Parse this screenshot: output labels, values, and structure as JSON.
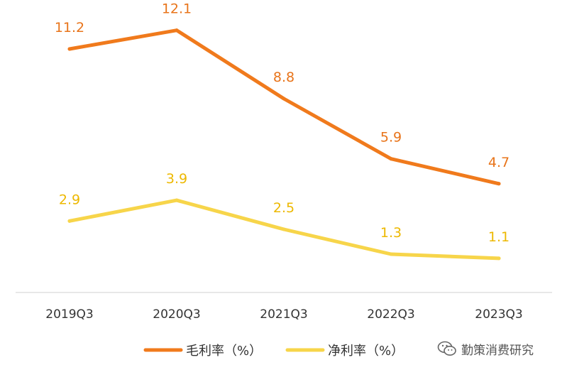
{
  "chart_data": {
    "type": "line",
    "categories": [
      "2019Q3",
      "2020Q3",
      "2021Q3",
      "2022Q3",
      "2023Q3"
    ],
    "series": [
      {
        "name": "毛利率（%）",
        "color": "#F07A1C",
        "values": [
          11.2,
          12.1,
          8.8,
          5.9,
          4.7
        ],
        "labels": [
          "11.2",
          "12.1",
          "8.8",
          "5.9",
          "4.7"
        ]
      },
      {
        "name": "净利率（%）",
        "color": "#F7D54A",
        "values": [
          2.9,
          3.9,
          2.5,
          1.3,
          1.1
        ],
        "labels": [
          "2.9",
          "3.9",
          "2.5",
          "1.3",
          "1.1"
        ]
      }
    ],
    "legend_position": "bottom",
    "grid": false,
    "ylim": [
      -0.5,
      13.5
    ]
  },
  "watermark": {
    "text": "勤策消费研究",
    "icon": "wechat-icon"
  }
}
